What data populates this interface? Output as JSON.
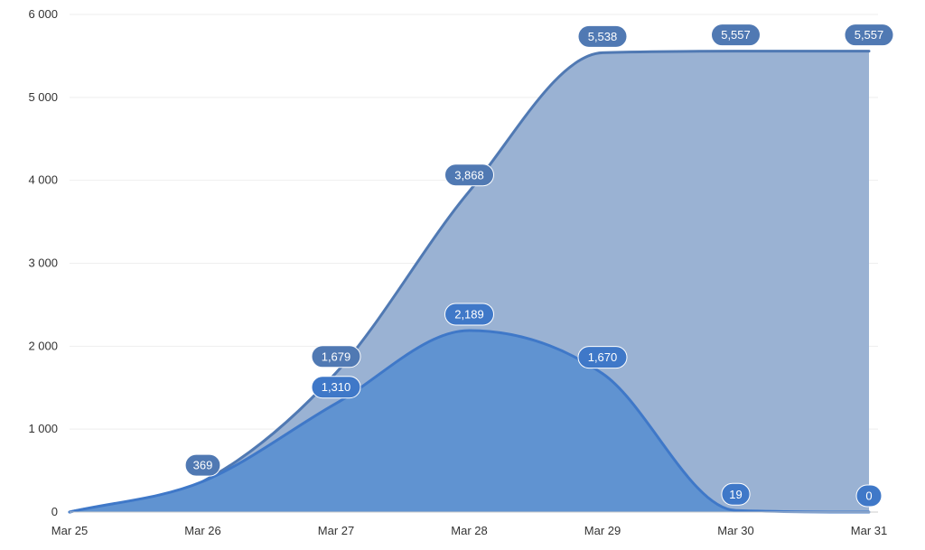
{
  "chart_data": {
    "type": "area",
    "title": "",
    "xlabel": "",
    "ylabel": "",
    "categories": [
      "Mar 25",
      "Mar 26",
      "Mar 27",
      "Mar 28",
      "Mar 29",
      "Mar 30",
      "Mar 31"
    ],
    "ylim": [
      0,
      6000
    ],
    "yticks": [
      0,
      1000,
      2000,
      3000,
      4000,
      5000,
      6000
    ],
    "ytick_labels": [
      "0",
      "1 000",
      "2 000",
      "3 000",
      "4 000",
      "5 000",
      "6 000"
    ],
    "grid": "horizontal",
    "legend": "none",
    "series": [
      {
        "values": [
          0,
          369,
          1679,
          3868,
          5538,
          5557,
          5557
        ],
        "labels": [
          "",
          "369",
          "1,679",
          "3,868",
          "5,538",
          "5,557",
          "5,557"
        ],
        "line_color": "#5079b3",
        "fill_color": "#9ab2d3",
        "label_bg": "#5079b3"
      },
      {
        "values": [
          0,
          369,
          1310,
          2189,
          1670,
          19,
          0
        ],
        "labels": [
          "",
          "",
          "1,310",
          "2,189",
          "1,670",
          "19",
          "0"
        ],
        "line_color": "#3f78c8",
        "fill_color": "#6093d1",
        "label_bg": "#3f78c8"
      }
    ]
  }
}
